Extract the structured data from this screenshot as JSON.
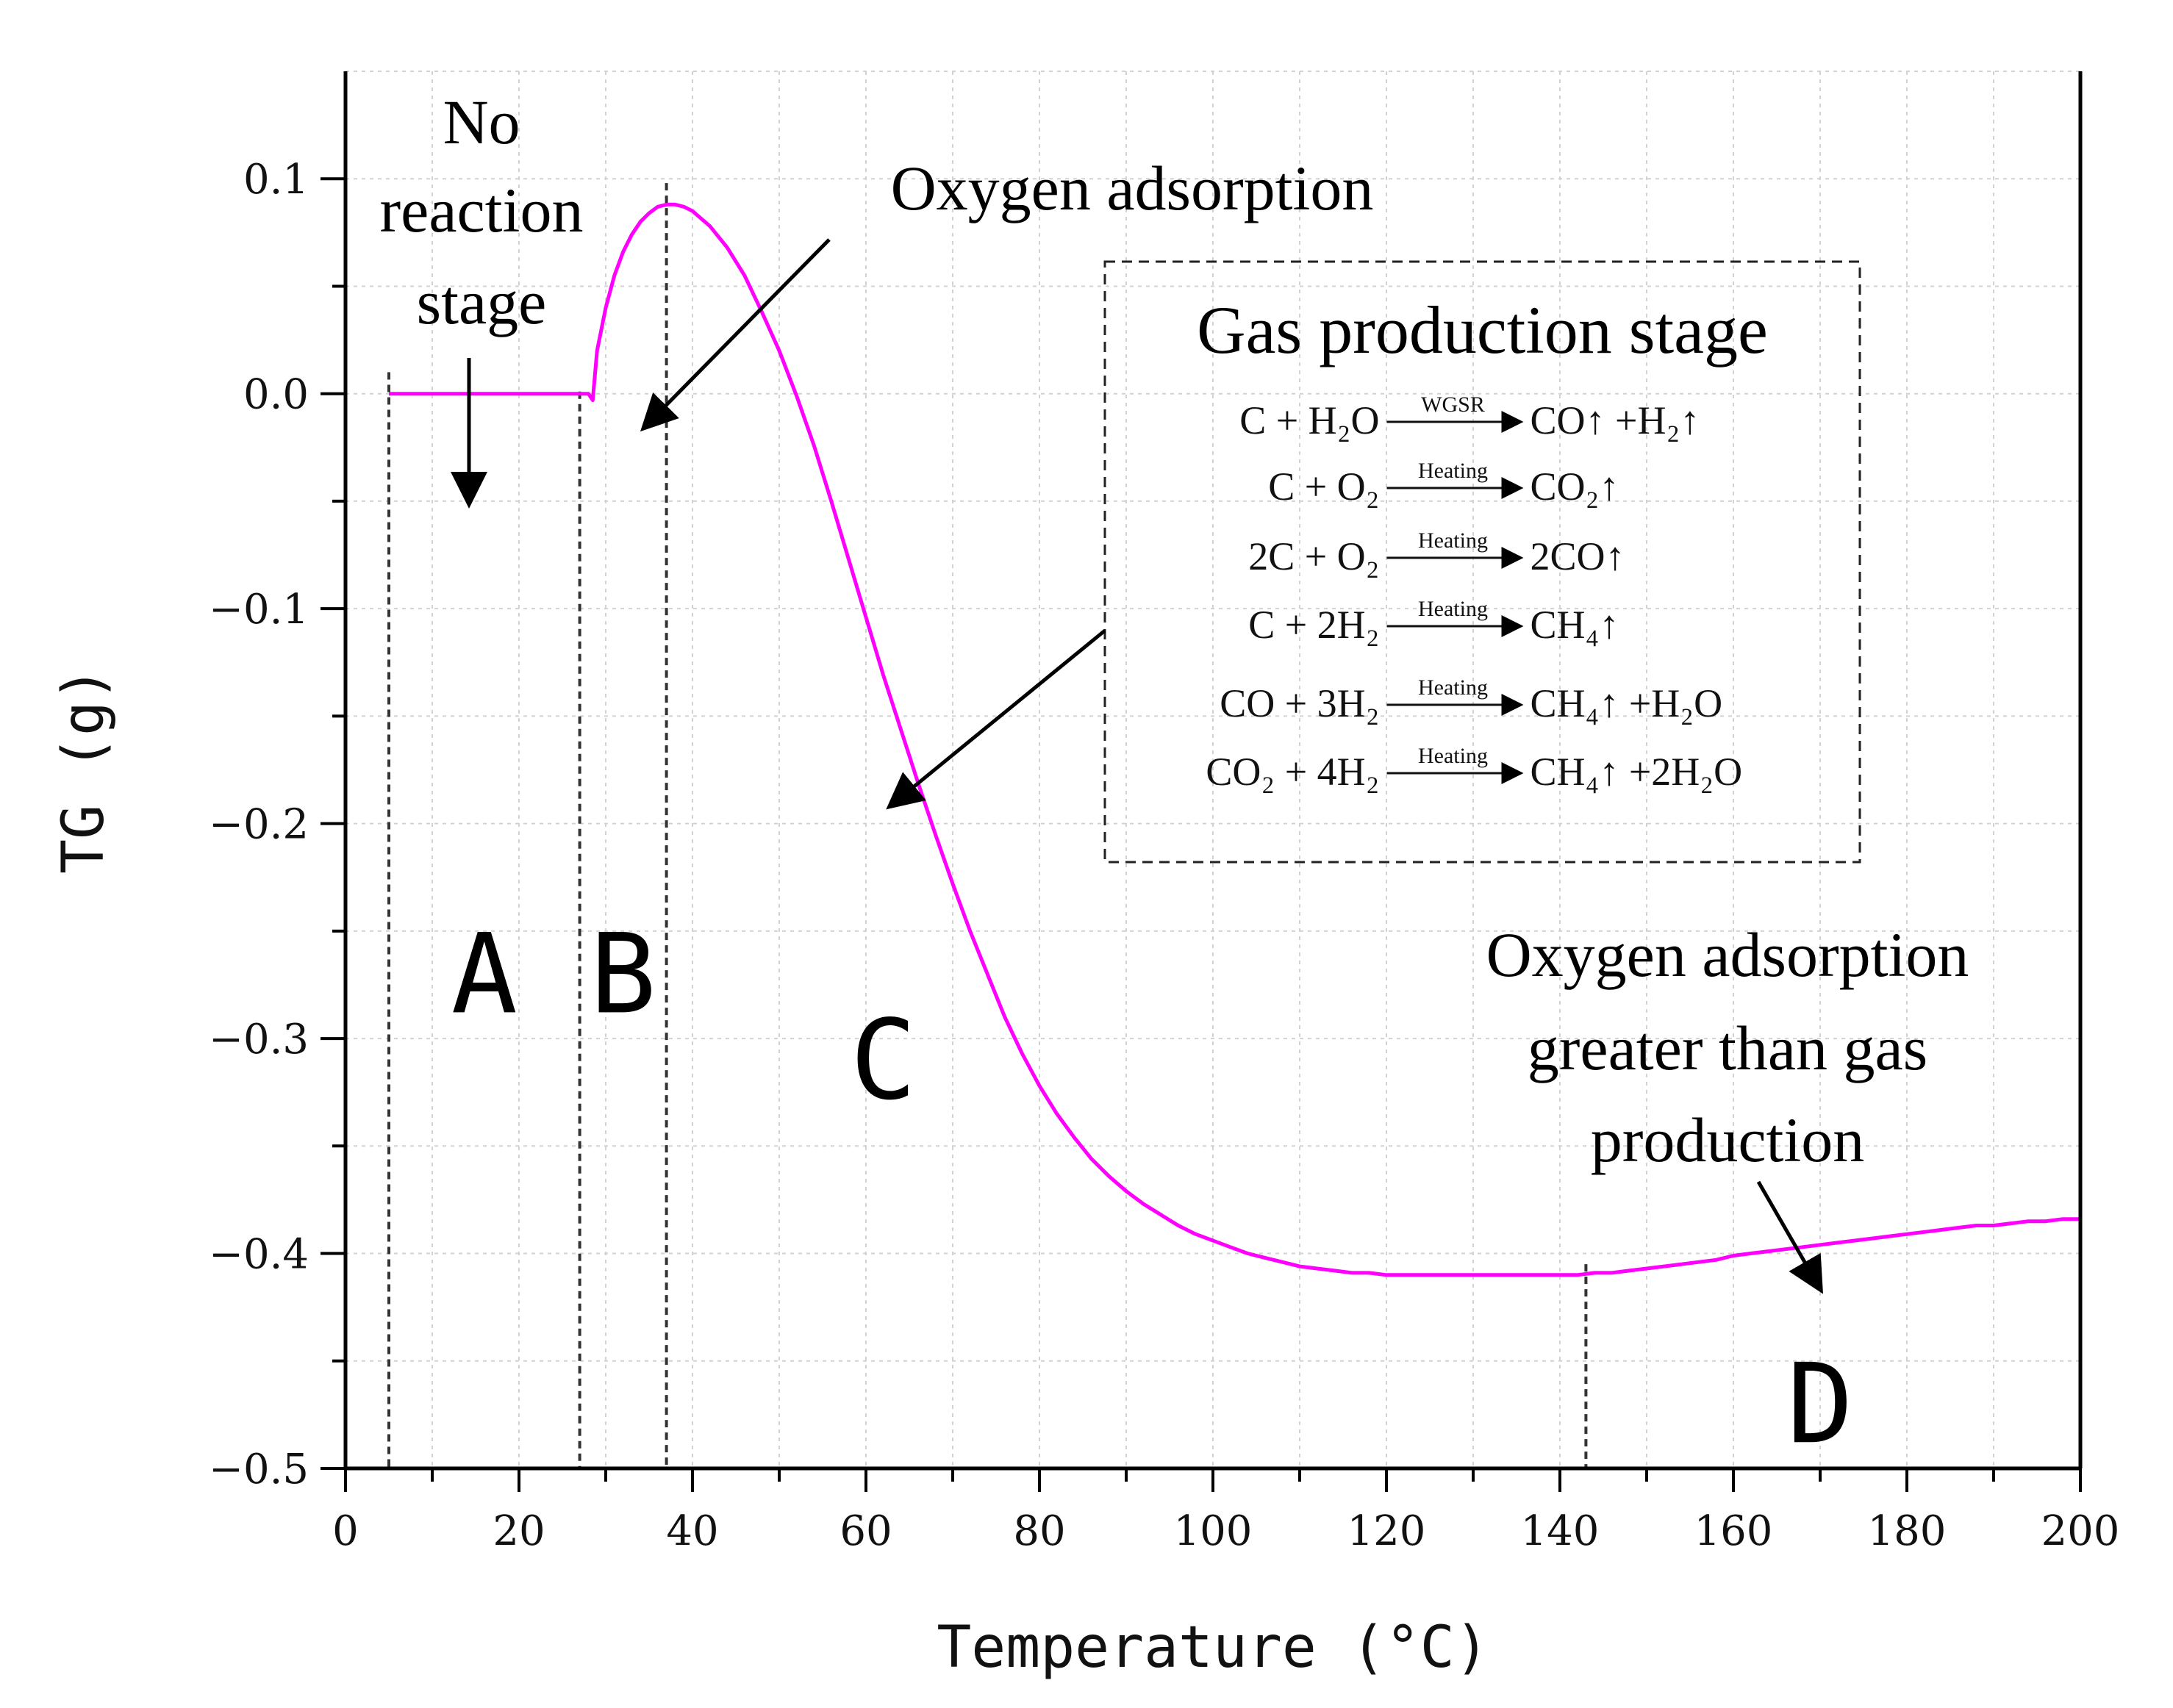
{
  "chart_data": {
    "type": "line",
    "title": "",
    "xlabel": "Temperature (°C)",
    "ylabel": "TG (g)",
    "xlim": [
      0,
      200
    ],
    "ylim": [
      -0.5,
      0.15
    ],
    "grid": true,
    "x_ticks": [
      0,
      20,
      40,
      60,
      80,
      100,
      120,
      140,
      160,
      180,
      200
    ],
    "x_tick_labels": [
      "0",
      "20",
      "40",
      "60",
      "80",
      "100",
      "120",
      "140",
      "160",
      "180",
      "200"
    ],
    "y_ticks": [
      -0.5,
      -0.4,
      -0.3,
      -0.2,
      -0.1,
      0.0,
      0.1
    ],
    "y_tick_labels": [
      "−0.5",
      "−0.4",
      "−0.3",
      "−0.2",
      "−0.1",
      "0.0",
      "0.1"
    ],
    "series": [
      {
        "name": "TG",
        "color": "#ff00ff",
        "x": [
          5,
          10,
          15,
          20,
          25,
          28,
          28.5,
          29,
          30,
          31,
          32,
          33,
          34,
          35,
          36,
          37,
          38,
          39,
          40,
          42,
          44,
          46,
          48,
          50,
          52,
          54,
          56,
          58,
          60,
          62,
          64,
          66,
          68,
          70,
          72,
          74,
          76,
          78,
          80,
          82,
          84,
          86,
          88,
          90,
          92,
          94,
          96,
          98,
          100,
          102,
          104,
          106,
          108,
          110,
          112,
          114,
          116,
          118,
          120,
          122,
          124,
          126,
          128,
          130,
          132,
          134,
          136,
          138,
          140,
          142,
          144,
          146,
          148,
          150,
          152,
          154,
          156,
          158,
          160,
          162,
          164,
          166,
          168,
          170,
          172,
          174,
          176,
          178,
          180,
          182,
          184,
          186,
          188,
          190,
          192,
          194,
          196,
          198,
          200
        ],
        "y": [
          0,
          0,
          0,
          0,
          0,
          0,
          -0.003,
          0.02,
          0.04,
          0.055,
          0.066,
          0.074,
          0.08,
          0.084,
          0.087,
          0.088,
          0.088,
          0.087,
          0.085,
          0.078,
          0.068,
          0.055,
          0.038,
          0.02,
          -0.001,
          -0.024,
          -0.05,
          -0.077,
          -0.104,
          -0.131,
          -0.156,
          -0.181,
          -0.205,
          -0.228,
          -0.25,
          -0.27,
          -0.29,
          -0.307,
          -0.322,
          -0.335,
          -0.346,
          -0.356,
          -0.364,
          -0.371,
          -0.377,
          -0.382,
          -0.387,
          -0.391,
          -0.394,
          -0.397,
          -0.4,
          -0.402,
          -0.404,
          -0.406,
          -0.407,
          -0.408,
          -0.409,
          -0.409,
          -0.41,
          -0.41,
          -0.41,
          -0.41,
          -0.41,
          -0.41,
          -0.41,
          -0.41,
          -0.41,
          -0.41,
          -0.41,
          -0.41,
          -0.409,
          -0.409,
          -0.408,
          -0.407,
          -0.406,
          -0.405,
          -0.404,
          -0.403,
          -0.401,
          -0.4,
          -0.399,
          -0.398,
          -0.397,
          -0.396,
          -0.395,
          -0.394,
          -0.393,
          -0.392,
          -0.391,
          -0.39,
          -0.389,
          -0.388,
          -0.387,
          -0.387,
          -0.386,
          -0.385,
          -0.385,
          -0.384,
          -0.384
        ]
      }
    ],
    "stage_boundaries_x": [
      5,
      27,
      37,
      143
    ],
    "regions": [
      {
        "id": "A",
        "label": "A",
        "x": 16,
        "y": -0.27
      },
      {
        "id": "B",
        "label": "B",
        "x": 32,
        "y": -0.27
      },
      {
        "id": "C",
        "label": "C",
        "x": 62,
        "y": -0.31
      },
      {
        "id": "D",
        "label": "D",
        "x": 170,
        "y": -0.47
      }
    ],
    "annotations": {
      "no_reaction": {
        "lines": [
          "No",
          "reaction",
          "stage"
        ]
      },
      "oxygen_adsorption": {
        "text": "Oxygen adsorption"
      },
      "oxygen_greater": {
        "lines": [
          "Oxygen adsorption",
          "greater than gas",
          "production"
        ]
      }
    },
    "gas_production_box": {
      "title": "Gas production stage",
      "equations": [
        {
          "left": "C + H₂O",
          "condition": "WGSR",
          "right": "CO↑ +H₂↑"
        },
        {
          "left": "C + O₂",
          "condition": "Heating",
          "right": "CO₂↑"
        },
        {
          "left": "2C + O₂",
          "condition": "Heating",
          "right": "2CO↑"
        },
        {
          "left": "C + 2H₂",
          "condition": "Heating",
          "right": "CH₄↑"
        },
        {
          "left": "CO + 3H₂",
          "condition": "Heating",
          "right": "CH₄↑ +H₂O"
        },
        {
          "left": "CO₂ + 4H₂",
          "condition": "Heating",
          "right": "CH₄↑ +2H₂O"
        }
      ]
    }
  }
}
